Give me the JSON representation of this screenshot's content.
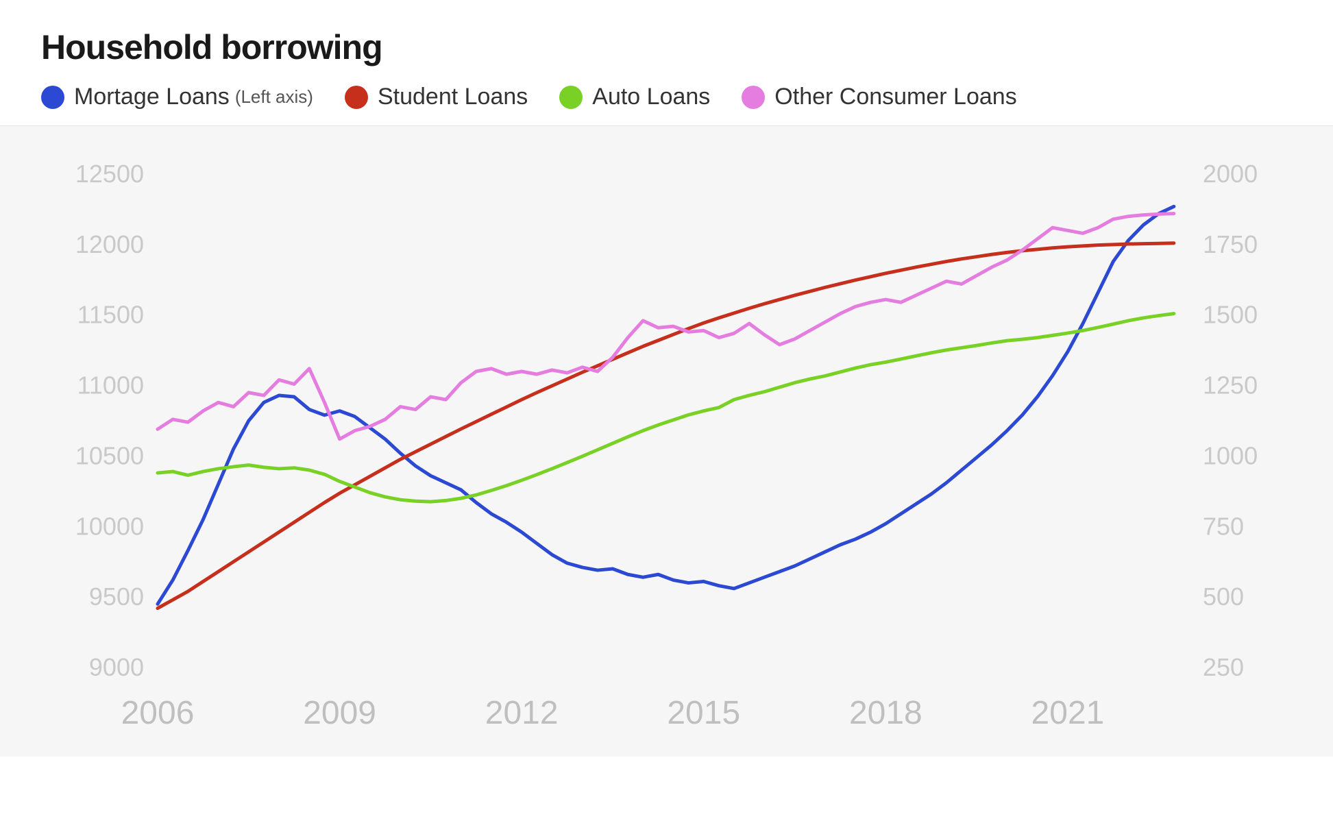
{
  "title": "Household borrowing",
  "legend": {
    "items": [
      {
        "label": "Mortage Loans",
        "note": "(Left axis)",
        "color": "#2b49d2"
      },
      {
        "label": "Student Loans",
        "note": "",
        "color": "#c62f1b"
      },
      {
        "label": "Auto Loans",
        "note": "",
        "color": "#79d126"
      },
      {
        "label": "Other Consumer Loans",
        "note": "",
        "color": "#e57de0"
      }
    ]
  },
  "chart": {
    "type": "line",
    "background_color": "#f6f6f6",
    "page_background": "#ffffff",
    "divider_color": "#e5e5e5",
    "axis_label_color": "#c9c9c9",
    "x_axis_label_color": "#bfbfbf",
    "title_fontsize": 50,
    "legend_fontsize": 34,
    "axis_fontsize": 36,
    "x_axis_fontsize": 48,
    "line_width": 5,
    "x": {
      "min": 2006,
      "max": 2023,
      "ticks": [
        2006,
        2009,
        2012,
        2015,
        2018,
        2021
      ]
    },
    "y_left": {
      "min": 9000,
      "max": 12500,
      "ticks": [
        9000,
        9500,
        10000,
        10500,
        11000,
        11500,
        12000,
        12500
      ]
    },
    "y_right": {
      "min": 250,
      "max": 2000,
      "ticks": [
        250,
        500,
        750,
        1000,
        1250,
        1500,
        1750,
        2000
      ]
    },
    "series": [
      {
        "name": "Mortage Loans",
        "axis": "left",
        "color": "#2b49d2",
        "points": [
          [
            2006.0,
            9450
          ],
          [
            2006.25,
            9620
          ],
          [
            2006.5,
            9830
          ],
          [
            2006.75,
            10050
          ],
          [
            2007.0,
            10300
          ],
          [
            2007.25,
            10550
          ],
          [
            2007.5,
            10750
          ],
          [
            2007.75,
            10880
          ],
          [
            2008.0,
            10930
          ],
          [
            2008.25,
            10920
          ],
          [
            2008.5,
            10830
          ],
          [
            2008.75,
            10790
          ],
          [
            2009.0,
            10820
          ],
          [
            2009.25,
            10780
          ],
          [
            2009.5,
            10700
          ],
          [
            2009.75,
            10620
          ],
          [
            2010.0,
            10520
          ],
          [
            2010.25,
            10430
          ],
          [
            2010.5,
            10360
          ],
          [
            2010.75,
            10310
          ],
          [
            2011.0,
            10260
          ],
          [
            2011.25,
            10170
          ],
          [
            2011.5,
            10090
          ],
          [
            2011.75,
            10030
          ],
          [
            2012.0,
            9960
          ],
          [
            2012.25,
            9880
          ],
          [
            2012.5,
            9800
          ],
          [
            2012.75,
            9740
          ],
          [
            2013.0,
            9710
          ],
          [
            2013.25,
            9690
          ],
          [
            2013.5,
            9700
          ],
          [
            2013.75,
            9660
          ],
          [
            2014.0,
            9640
          ],
          [
            2014.25,
            9660
          ],
          [
            2014.5,
            9620
          ],
          [
            2014.75,
            9600
          ],
          [
            2015.0,
            9610
          ],
          [
            2015.25,
            9580
          ],
          [
            2015.5,
            9560
          ],
          [
            2015.75,
            9600
          ],
          [
            2016.0,
            9640
          ],
          [
            2016.25,
            9680
          ],
          [
            2016.5,
            9720
          ],
          [
            2016.75,
            9770
          ],
          [
            2017.0,
            9820
          ],
          [
            2017.25,
            9870
          ],
          [
            2017.5,
            9910
          ],
          [
            2017.75,
            9960
          ],
          [
            2018.0,
            10020
          ],
          [
            2018.25,
            10090
          ],
          [
            2018.5,
            10160
          ],
          [
            2018.75,
            10230
          ],
          [
            2019.0,
            10310
          ],
          [
            2019.25,
            10400
          ],
          [
            2019.5,
            10490
          ],
          [
            2019.75,
            10580
          ],
          [
            2020.0,
            10680
          ],
          [
            2020.25,
            10790
          ],
          [
            2020.5,
            10920
          ],
          [
            2020.75,
            11070
          ],
          [
            2021.0,
            11240
          ],
          [
            2021.25,
            11440
          ],
          [
            2021.5,
            11660
          ],
          [
            2021.75,
            11880
          ],
          [
            2022.0,
            12030
          ],
          [
            2022.25,
            12140
          ],
          [
            2022.5,
            12220
          ],
          [
            2022.75,
            12270
          ]
        ]
      },
      {
        "name": "Student Loans",
        "axis": "right",
        "color": "#c62f1b",
        "points": [
          [
            2006.0,
            460
          ],
          [
            2006.25,
            490
          ],
          [
            2006.5,
            520
          ],
          [
            2006.75,
            555
          ],
          [
            2007.0,
            590
          ],
          [
            2007.25,
            625
          ],
          [
            2007.5,
            660
          ],
          [
            2007.75,
            695
          ],
          [
            2008.0,
            730
          ],
          [
            2008.25,
            765
          ],
          [
            2008.5,
            800
          ],
          [
            2008.75,
            835
          ],
          [
            2009.0,
            868
          ],
          [
            2009.25,
            898
          ],
          [
            2009.5,
            928
          ],
          [
            2009.75,
            958
          ],
          [
            2010.0,
            988
          ],
          [
            2010.25,
            1015
          ],
          [
            2010.5,
            1042
          ],
          [
            2010.75,
            1069
          ],
          [
            2011.0,
            1096
          ],
          [
            2011.25,
            1122
          ],
          [
            2011.5,
            1148
          ],
          [
            2011.75,
            1174
          ],
          [
            2012.0,
            1200
          ],
          [
            2012.25,
            1225
          ],
          [
            2012.5,
            1249
          ],
          [
            2012.75,
            1273
          ],
          [
            2013.0,
            1297
          ],
          [
            2013.25,
            1320
          ],
          [
            2013.5,
            1343
          ],
          [
            2013.75,
            1366
          ],
          [
            2014.0,
            1389
          ],
          [
            2014.25,
            1410
          ],
          [
            2014.5,
            1431
          ],
          [
            2014.75,
            1452
          ],
          [
            2015.0,
            1472
          ],
          [
            2015.25,
            1490
          ],
          [
            2015.5,
            1507
          ],
          [
            2015.75,
            1524
          ],
          [
            2016.0,
            1540
          ],
          [
            2016.25,
            1555
          ],
          [
            2016.5,
            1570
          ],
          [
            2016.75,
            1584
          ],
          [
            2017.0,
            1598
          ],
          [
            2017.25,
            1611
          ],
          [
            2017.5,
            1624
          ],
          [
            2017.75,
            1636
          ],
          [
            2018.0,
            1648
          ],
          [
            2018.25,
            1659
          ],
          [
            2018.5,
            1670
          ],
          [
            2018.75,
            1680
          ],
          [
            2019.0,
            1690
          ],
          [
            2019.25,
            1699
          ],
          [
            2019.5,
            1707
          ],
          [
            2019.75,
            1715
          ],
          [
            2020.0,
            1722
          ],
          [
            2020.25,
            1728
          ],
          [
            2020.5,
            1733
          ],
          [
            2020.75,
            1738
          ],
          [
            2021.0,
            1742
          ],
          [
            2021.25,
            1745
          ],
          [
            2021.5,
            1748
          ],
          [
            2021.75,
            1750
          ],
          [
            2022.0,
            1752
          ],
          [
            2022.25,
            1753
          ],
          [
            2022.5,
            1754
          ],
          [
            2022.75,
            1755
          ]
        ]
      },
      {
        "name": "Auto Loans",
        "axis": "right",
        "color": "#79d126",
        "points": [
          [
            2006.0,
            940
          ],
          [
            2006.25,
            945
          ],
          [
            2006.5,
            932
          ],
          [
            2006.75,
            945
          ],
          [
            2007.0,
            955
          ],
          [
            2007.25,
            962
          ],
          [
            2007.5,
            968
          ],
          [
            2007.75,
            960
          ],
          [
            2008.0,
            955
          ],
          [
            2008.25,
            958
          ],
          [
            2008.5,
            950
          ],
          [
            2008.75,
            935
          ],
          [
            2009.0,
            910
          ],
          [
            2009.25,
            890
          ],
          [
            2009.5,
            870
          ],
          [
            2009.75,
            855
          ],
          [
            2010.0,
            845
          ],
          [
            2010.25,
            840
          ],
          [
            2010.5,
            838
          ],
          [
            2010.75,
            842
          ],
          [
            2011.0,
            850
          ],
          [
            2011.25,
            862
          ],
          [
            2011.5,
            878
          ],
          [
            2011.75,
            895
          ],
          [
            2012.0,
            914
          ],
          [
            2012.25,
            934
          ],
          [
            2012.5,
            955
          ],
          [
            2012.75,
            977
          ],
          [
            2013.0,
            999
          ],
          [
            2013.25,
            1022
          ],
          [
            2013.5,
            1045
          ],
          [
            2013.75,
            1068
          ],
          [
            2014.0,
            1090
          ],
          [
            2014.25,
            1110
          ],
          [
            2014.5,
            1128
          ],
          [
            2014.75,
            1146
          ],
          [
            2015.0,
            1160
          ],
          [
            2015.25,
            1172
          ],
          [
            2015.5,
            1200
          ],
          [
            2015.75,
            1215
          ],
          [
            2016.0,
            1228
          ],
          [
            2016.25,
            1244
          ],
          [
            2016.5,
            1260
          ],
          [
            2016.75,
            1273
          ],
          [
            2017.0,
            1284
          ],
          [
            2017.25,
            1298
          ],
          [
            2017.5,
            1312
          ],
          [
            2017.75,
            1324
          ],
          [
            2018.0,
            1333
          ],
          [
            2018.25,
            1344
          ],
          [
            2018.5,
            1355
          ],
          [
            2018.75,
            1366
          ],
          [
            2019.0,
            1376
          ],
          [
            2019.25,
            1384
          ],
          [
            2019.5,
            1392
          ],
          [
            2019.75,
            1401
          ],
          [
            2020.0,
            1409
          ],
          [
            2020.25,
            1414
          ],
          [
            2020.5,
            1420
          ],
          [
            2020.75,
            1428
          ],
          [
            2021.0,
            1436
          ],
          [
            2021.25,
            1445
          ],
          [
            2021.5,
            1456
          ],
          [
            2021.75,
            1468
          ],
          [
            2022.0,
            1480
          ],
          [
            2022.25,
            1490
          ],
          [
            2022.5,
            1498
          ],
          [
            2022.75,
            1505
          ]
        ]
      },
      {
        "name": "Other Consumer Loans",
        "axis": "right",
        "color": "#e57de0",
        "points": [
          [
            2006.0,
            1095
          ],
          [
            2006.25,
            1130
          ],
          [
            2006.5,
            1120
          ],
          [
            2006.75,
            1160
          ],
          [
            2007.0,
            1190
          ],
          [
            2007.25,
            1175
          ],
          [
            2007.5,
            1225
          ],
          [
            2007.75,
            1215
          ],
          [
            2008.0,
            1270
          ],
          [
            2008.25,
            1255
          ],
          [
            2008.5,
            1310
          ],
          [
            2008.75,
            1190
          ],
          [
            2009.0,
            1060
          ],
          [
            2009.25,
            1090
          ],
          [
            2009.5,
            1105
          ],
          [
            2009.75,
            1130
          ],
          [
            2010.0,
            1175
          ],
          [
            2010.25,
            1165
          ],
          [
            2010.5,
            1210
          ],
          [
            2010.75,
            1200
          ],
          [
            2011.0,
            1260
          ],
          [
            2011.25,
            1300
          ],
          [
            2011.5,
            1310
          ],
          [
            2011.75,
            1290
          ],
          [
            2012.0,
            1300
          ],
          [
            2012.25,
            1290
          ],
          [
            2012.5,
            1305
          ],
          [
            2012.75,
            1295
          ],
          [
            2013.0,
            1315
          ],
          [
            2013.25,
            1300
          ],
          [
            2013.5,
            1350
          ],
          [
            2013.75,
            1420
          ],
          [
            2014.0,
            1480
          ],
          [
            2014.25,
            1455
          ],
          [
            2014.5,
            1460
          ],
          [
            2014.75,
            1440
          ],
          [
            2015.0,
            1445
          ],
          [
            2015.25,
            1420
          ],
          [
            2015.5,
            1435
          ],
          [
            2015.75,
            1470
          ],
          [
            2016.0,
            1430
          ],
          [
            2016.25,
            1395
          ],
          [
            2016.5,
            1415
          ],
          [
            2016.75,
            1445
          ],
          [
            2017.0,
            1475
          ],
          [
            2017.25,
            1505
          ],
          [
            2017.5,
            1530
          ],
          [
            2017.75,
            1545
          ],
          [
            2018.0,
            1555
          ],
          [
            2018.25,
            1545
          ],
          [
            2018.5,
            1570
          ],
          [
            2018.75,
            1595
          ],
          [
            2019.0,
            1620
          ],
          [
            2019.25,
            1610
          ],
          [
            2019.5,
            1640
          ],
          [
            2019.75,
            1670
          ],
          [
            2020.0,
            1695
          ],
          [
            2020.25,
            1730
          ],
          [
            2020.5,
            1770
          ],
          [
            2020.75,
            1810
          ],
          [
            2021.0,
            1800
          ],
          [
            2021.25,
            1790
          ],
          [
            2021.5,
            1810
          ],
          [
            2021.75,
            1840
          ],
          [
            2022.0,
            1850
          ],
          [
            2022.25,
            1855
          ],
          [
            2022.5,
            1858
          ],
          [
            2022.75,
            1860
          ]
        ]
      }
    ]
  }
}
